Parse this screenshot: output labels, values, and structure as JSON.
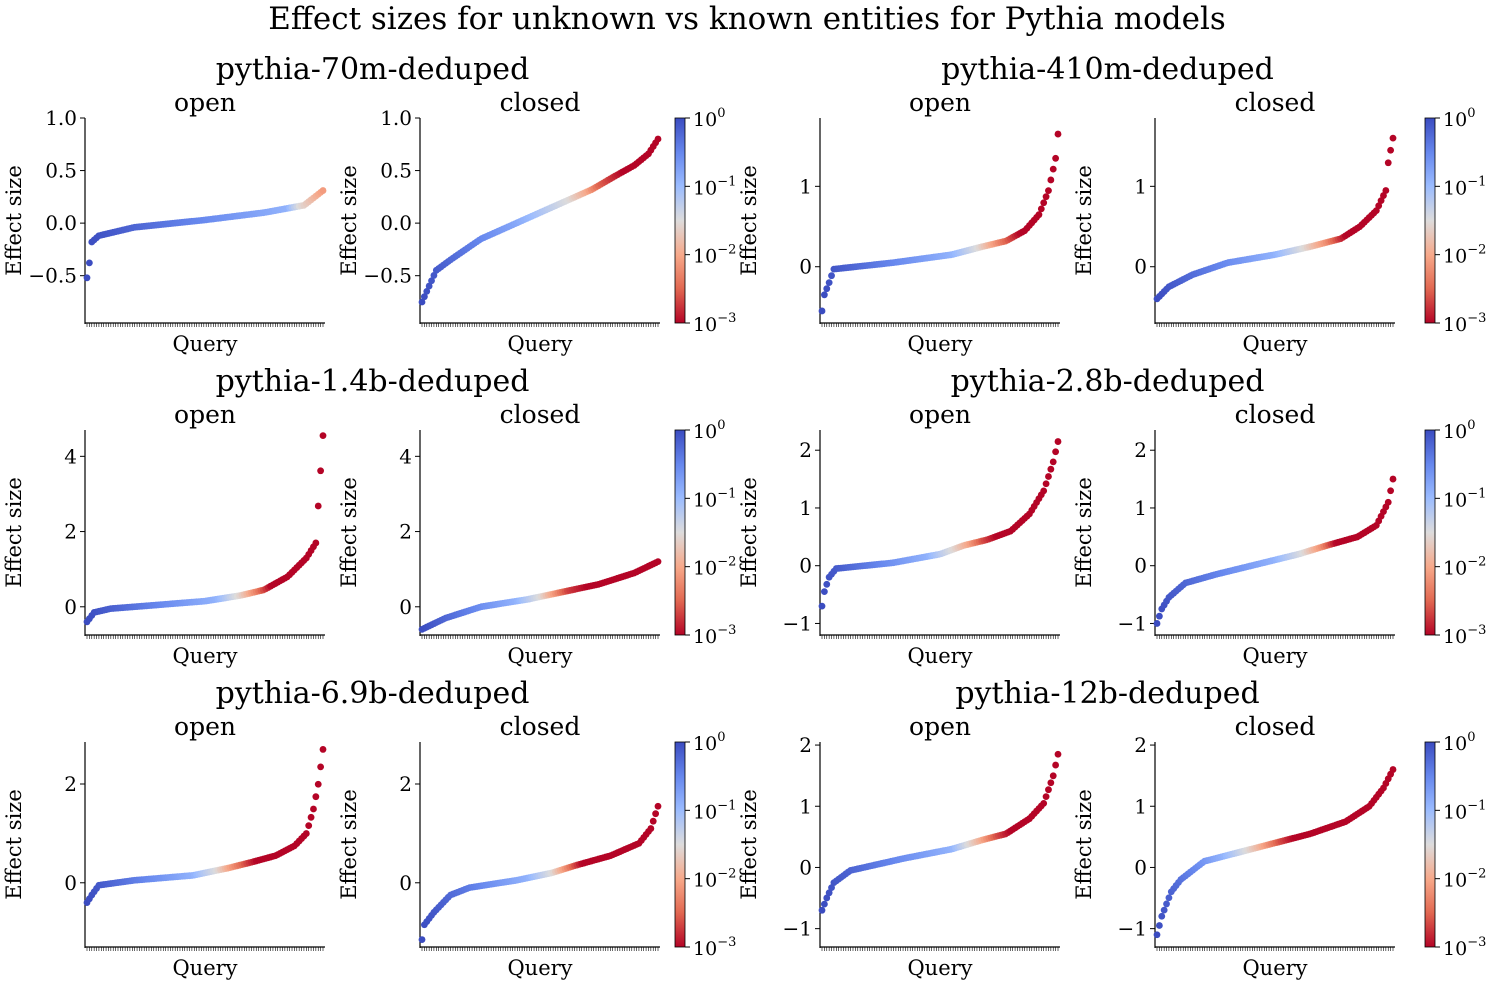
{
  "figure": {
    "title": "Effect sizes for unknown vs known entities for Pythia models",
    "xlabel": "Query",
    "ylabel": "Effect size",
    "colorbar_ticks": [
      {
        "base": "10",
        "exp": "0"
      },
      {
        "base": "10",
        "exp": "−1"
      },
      {
        "base": "10",
        "exp": "−2"
      },
      {
        "base": "10",
        "exp": "−3"
      }
    ],
    "colormap": "coolwarm_r",
    "colors": {
      "low_p": "#b40426",
      "mid": "#dddcdc",
      "high_p": "#3b4cc0"
    }
  },
  "chart_data": [
    {
      "type": "scatter",
      "model": "pythia-70m-deduped",
      "subtitle": "open",
      "n": 100,
      "ylim": [
        -0.95,
        1.0
      ],
      "yticks": [
        {
          "v": 1.0,
          "label": "1.0"
        },
        {
          "v": 0.5,
          "label": "0.5"
        },
        {
          "v": 0.0,
          "label": "0.0"
        },
        {
          "v": -0.5,
          "label": "−0.5"
        }
      ],
      "knots": [
        [
          0,
          -0.52
        ],
        [
          1,
          -0.38
        ],
        [
          2,
          -0.18
        ],
        [
          5,
          -0.12
        ],
        [
          20,
          -0.04
        ],
        [
          50,
          0.03
        ],
        [
          75,
          0.1
        ],
        [
          92,
          0.17
        ],
        [
          96,
          0.24
        ],
        [
          100,
          0.31
        ]
      ],
      "pknots": [
        [
          0,
          0
        ],
        [
          85,
          -0.9
        ],
        [
          90,
          -1.5
        ],
        [
          95,
          -1.8
        ],
        [
          100,
          -2.1
        ]
      ]
    },
    {
      "type": "scatter",
      "model": "pythia-70m-deduped",
      "subtitle": "closed",
      "n": 100,
      "ylim": [
        -0.95,
        1.0
      ],
      "yticks": [
        {
          "v": 1.0,
          "label": "1.0"
        },
        {
          "v": 0.5,
          "label": "0.5"
        },
        {
          "v": 0.0,
          "label": "0.0"
        },
        {
          "v": -0.5,
          "label": "−0.5"
        }
      ],
      "knots": [
        [
          0,
          -0.75
        ],
        [
          3,
          -0.6
        ],
        [
          6,
          -0.45
        ],
        [
          12,
          -0.35
        ],
        [
          25,
          -0.15
        ],
        [
          45,
          0.05
        ],
        [
          60,
          0.2
        ],
        [
          72,
          0.32
        ],
        [
          82,
          0.45
        ],
        [
          90,
          0.55
        ],
        [
          96,
          0.66
        ],
        [
          100,
          0.8
        ]
      ],
      "pknots": [
        [
          0,
          0
        ],
        [
          40,
          -0.8
        ],
        [
          62,
          -1.5
        ],
        [
          70,
          -2.0
        ],
        [
          75,
          -2.5
        ],
        [
          85,
          -3
        ],
        [
          100,
          -3
        ]
      ]
    },
    {
      "type": "scatter",
      "model": "pythia-410m-deduped",
      "subtitle": "open",
      "n": 100,
      "ylim": [
        -0.7,
        1.85
      ],
      "yticks": [
        {
          "v": 1,
          "label": "1"
        },
        {
          "v": 0,
          "label": "0"
        }
      ],
      "knots": [
        [
          0,
          -0.55
        ],
        [
          1,
          -0.35
        ],
        [
          3,
          -0.2
        ],
        [
          5,
          -0.03
        ],
        [
          30,
          0.05
        ],
        [
          55,
          0.15
        ],
        [
          68,
          0.25
        ],
        [
          78,
          0.32
        ],
        [
          86,
          0.45
        ],
        [
          92,
          0.65
        ],
        [
          96,
          0.95
        ],
        [
          99,
          1.35
        ],
        [
          100,
          1.65
        ]
      ],
      "pknots": [
        [
          0,
          0
        ],
        [
          55,
          -0.9
        ],
        [
          66,
          -1.5
        ],
        [
          72,
          -2.0
        ],
        [
          78,
          -2.5
        ],
        [
          84,
          -3
        ],
        [
          100,
          -3
        ]
      ]
    },
    {
      "type": "scatter",
      "model": "pythia-410m-deduped",
      "subtitle": "closed",
      "n": 100,
      "ylim": [
        -0.7,
        1.85
      ],
      "yticks": [
        {
          "v": 1,
          "label": "1"
        },
        {
          "v": 0,
          "label": "0"
        }
      ],
      "knots": [
        [
          0,
          -0.4
        ],
        [
          5,
          -0.25
        ],
        [
          15,
          -0.1
        ],
        [
          30,
          0.05
        ],
        [
          50,
          0.15
        ],
        [
          65,
          0.25
        ],
        [
          78,
          0.35
        ],
        [
          86,
          0.5
        ],
        [
          93,
          0.7
        ],
        [
          97,
          0.95
        ],
        [
          98,
          1.3
        ],
        [
          100,
          1.6
        ]
      ],
      "pknots": [
        [
          0,
          0
        ],
        [
          50,
          -0.9
        ],
        [
          62,
          -1.5
        ],
        [
          72,
          -2.2
        ],
        [
          80,
          -3
        ],
        [
          100,
          -3
        ]
      ]
    },
    {
      "type": "scatter",
      "model": "pythia-1.4b-deduped",
      "subtitle": "open",
      "n": 100,
      "ylim": [
        -0.75,
        4.7
      ],
      "yticks": [
        {
          "v": 4,
          "label": "4"
        },
        {
          "v": 2,
          "label": "2"
        },
        {
          "v": 0,
          "label": "0"
        }
      ],
      "knots": [
        [
          0,
          -0.4
        ],
        [
          3,
          -0.15
        ],
        [
          10,
          -0.05
        ],
        [
          30,
          0.05
        ],
        [
          50,
          0.15
        ],
        [
          65,
          0.3
        ],
        [
          75,
          0.45
        ],
        [
          85,
          0.8
        ],
        [
          93,
          1.3
        ],
        [
          97,
          1.7
        ],
        [
          98,
          2.7
        ],
        [
          100,
          4.55
        ]
      ],
      "pknots": [
        [
          0,
          0
        ],
        [
          55,
          -0.9
        ],
        [
          65,
          -1.6
        ],
        [
          72,
          -2.3
        ],
        [
          78,
          -3
        ],
        [
          100,
          -3
        ]
      ]
    },
    {
      "type": "scatter",
      "model": "pythia-1.4b-deduped",
      "subtitle": "closed",
      "n": 100,
      "ylim": [
        -0.75,
        4.7
      ],
      "yticks": [
        {
          "v": 4,
          "label": "4"
        },
        {
          "v": 2,
          "label": "2"
        },
        {
          "v": 0,
          "label": "0"
        }
      ],
      "knots": [
        [
          0,
          -0.6
        ],
        [
          10,
          -0.3
        ],
        [
          25,
          0.0
        ],
        [
          45,
          0.2
        ],
        [
          60,
          0.4
        ],
        [
          75,
          0.6
        ],
        [
          90,
          0.9
        ],
        [
          100,
          1.2
        ]
      ],
      "pknots": [
        [
          0,
          0
        ],
        [
          40,
          -0.9
        ],
        [
          50,
          -1.5
        ],
        [
          55,
          -2.0
        ],
        [
          62,
          -2.7
        ],
        [
          70,
          -3
        ],
        [
          100,
          -3
        ]
      ]
    },
    {
      "type": "scatter",
      "model": "pythia-2.8b-deduped",
      "subtitle": "open",
      "n": 100,
      "ylim": [
        -1.2,
        2.35
      ],
      "yticks": [
        {
          "v": 2,
          "label": "2"
        },
        {
          "v": 1,
          "label": "1"
        },
        {
          "v": 0,
          "label": "0"
        },
        {
          "v": -1,
          "label": "−1"
        }
      ],
      "knots": [
        [
          0,
          -0.7
        ],
        [
          1,
          -0.45
        ],
        [
          3,
          -0.2
        ],
        [
          6,
          -0.05
        ],
        [
          30,
          0.05
        ],
        [
          50,
          0.2
        ],
        [
          60,
          0.35
        ],
        [
          70,
          0.45
        ],
        [
          80,
          0.6
        ],
        [
          88,
          0.9
        ],
        [
          94,
          1.3
        ],
        [
          98,
          1.8
        ],
        [
          100,
          2.15
        ]
      ],
      "pknots": [
        [
          0,
          0
        ],
        [
          45,
          -0.9
        ],
        [
          55,
          -1.5
        ],
        [
          62,
          -2.0
        ],
        [
          68,
          -2.6
        ],
        [
          74,
          -3
        ],
        [
          100,
          -3
        ]
      ]
    },
    {
      "type": "scatter",
      "model": "pythia-2.8b-deduped",
      "subtitle": "closed",
      "n": 100,
      "ylim": [
        -1.2,
        2.35
      ],
      "yticks": [
        {
          "v": 2,
          "label": "2"
        },
        {
          "v": 1,
          "label": "1"
        },
        {
          "v": 0,
          "label": "0"
        },
        {
          "v": -1,
          "label": "−1"
        }
      ],
      "knots": [
        [
          0,
          -1.0
        ],
        [
          2,
          -0.75
        ],
        [
          5,
          -0.55
        ],
        [
          12,
          -0.3
        ],
        [
          25,
          -0.15
        ],
        [
          45,
          0.05
        ],
        [
          60,
          0.2
        ],
        [
          72,
          0.35
        ],
        [
          85,
          0.5
        ],
        [
          93,
          0.7
        ],
        [
          98,
          1.1
        ],
        [
          100,
          1.5
        ]
      ],
      "pknots": [
        [
          0,
          0
        ],
        [
          50,
          -0.9
        ],
        [
          62,
          -1.5
        ],
        [
          70,
          -2.2
        ],
        [
          76,
          -3
        ],
        [
          100,
          -3
        ]
      ]
    },
    {
      "type": "scatter",
      "model": "pythia-6.9b-deduped",
      "subtitle": "open",
      "n": 100,
      "ylim": [
        -1.3,
        2.85
      ],
      "yticks": [
        {
          "v": 2,
          "label": "2"
        },
        {
          "v": 0,
          "label": "0"
        }
      ],
      "knots": [
        [
          0,
          -0.4
        ],
        [
          2,
          -0.25
        ],
        [
          5,
          -0.05
        ],
        [
          20,
          0.05
        ],
        [
          45,
          0.15
        ],
        [
          60,
          0.3
        ],
        [
          70,
          0.42
        ],
        [
          80,
          0.55
        ],
        [
          88,
          0.75
        ],
        [
          93,
          1.0
        ],
        [
          96,
          1.5
        ],
        [
          98,
          2.0
        ],
        [
          100,
          2.7
        ]
      ],
      "pknots": [
        [
          0,
          0
        ],
        [
          45,
          -0.9
        ],
        [
          55,
          -1.5
        ],
        [
          60,
          -2.0
        ],
        [
          67,
          -2.6
        ],
        [
          72,
          -3
        ],
        [
          100,
          -3
        ]
      ]
    },
    {
      "type": "scatter",
      "model": "pythia-6.9b-deduped",
      "subtitle": "closed",
      "n": 100,
      "ylim": [
        -1.3,
        2.85
      ],
      "yticks": [
        {
          "v": 2,
          "label": "2"
        },
        {
          "v": 0,
          "label": "0"
        }
      ],
      "knots": [
        [
          0,
          -1.15
        ],
        [
          1,
          -0.85
        ],
        [
          5,
          -0.6
        ],
        [
          12,
          -0.25
        ],
        [
          20,
          -0.1
        ],
        [
          40,
          0.05
        ],
        [
          55,
          0.2
        ],
        [
          65,
          0.35
        ],
        [
          80,
          0.55
        ],
        [
          92,
          0.8
        ],
        [
          97,
          1.1
        ],
        [
          100,
          1.55
        ]
      ],
      "pknots": [
        [
          0,
          0
        ],
        [
          45,
          -0.9
        ],
        [
          55,
          -1.5
        ],
        [
          62,
          -2.3
        ],
        [
          68,
          -3
        ],
        [
          100,
          -3
        ]
      ]
    },
    {
      "type": "scatter",
      "model": "pythia-12b-deduped",
      "subtitle": "open",
      "n": 100,
      "ylim": [
        -1.3,
        2.05
      ],
      "yticks": [
        {
          "v": 2,
          "label": "2"
        },
        {
          "v": 1,
          "label": "1"
        },
        {
          "v": 0,
          "label": "0"
        },
        {
          "v": -1,
          "label": "−1"
        }
      ],
      "knots": [
        [
          0,
          -0.7
        ],
        [
          2,
          -0.5
        ],
        [
          5,
          -0.25
        ],
        [
          12,
          -0.05
        ],
        [
          35,
          0.15
        ],
        [
          55,
          0.3
        ],
        [
          68,
          0.45
        ],
        [
          78,
          0.55
        ],
        [
          88,
          0.8
        ],
        [
          94,
          1.05
        ],
        [
          98,
          1.5
        ],
        [
          100,
          1.85
        ]
      ],
      "pknots": [
        [
          0,
          0
        ],
        [
          55,
          -0.9
        ],
        [
          62,
          -1.5
        ],
        [
          68,
          -2.0
        ],
        [
          74,
          -2.6
        ],
        [
          80,
          -3
        ],
        [
          100,
          -3
        ]
      ]
    },
    {
      "type": "scatter",
      "model": "pythia-12b-deduped",
      "subtitle": "closed",
      "n": 100,
      "ylim": [
        -1.3,
        2.05
      ],
      "yticks": [
        {
          "v": 2,
          "label": "2"
        },
        {
          "v": 1,
          "label": "1"
        },
        {
          "v": 0,
          "label": "0"
        },
        {
          "v": -1,
          "label": "−1"
        }
      ],
      "knots": [
        [
          0,
          -1.1
        ],
        [
          2,
          -0.8
        ],
        [
          6,
          -0.4
        ],
        [
          10,
          -0.2
        ],
        [
          20,
          0.1
        ],
        [
          35,
          0.25
        ],
        [
          50,
          0.4
        ],
        [
          65,
          0.55
        ],
        [
          80,
          0.75
        ],
        [
          90,
          1.0
        ],
        [
          96,
          1.3
        ],
        [
          100,
          1.6
        ]
      ],
      "pknots": [
        [
          0,
          0
        ],
        [
          28,
          -0.9
        ],
        [
          38,
          -1.5
        ],
        [
          45,
          -2.0
        ],
        [
          52,
          -2.6
        ],
        [
          58,
          -3
        ],
        [
          100,
          -3
        ]
      ]
    }
  ]
}
